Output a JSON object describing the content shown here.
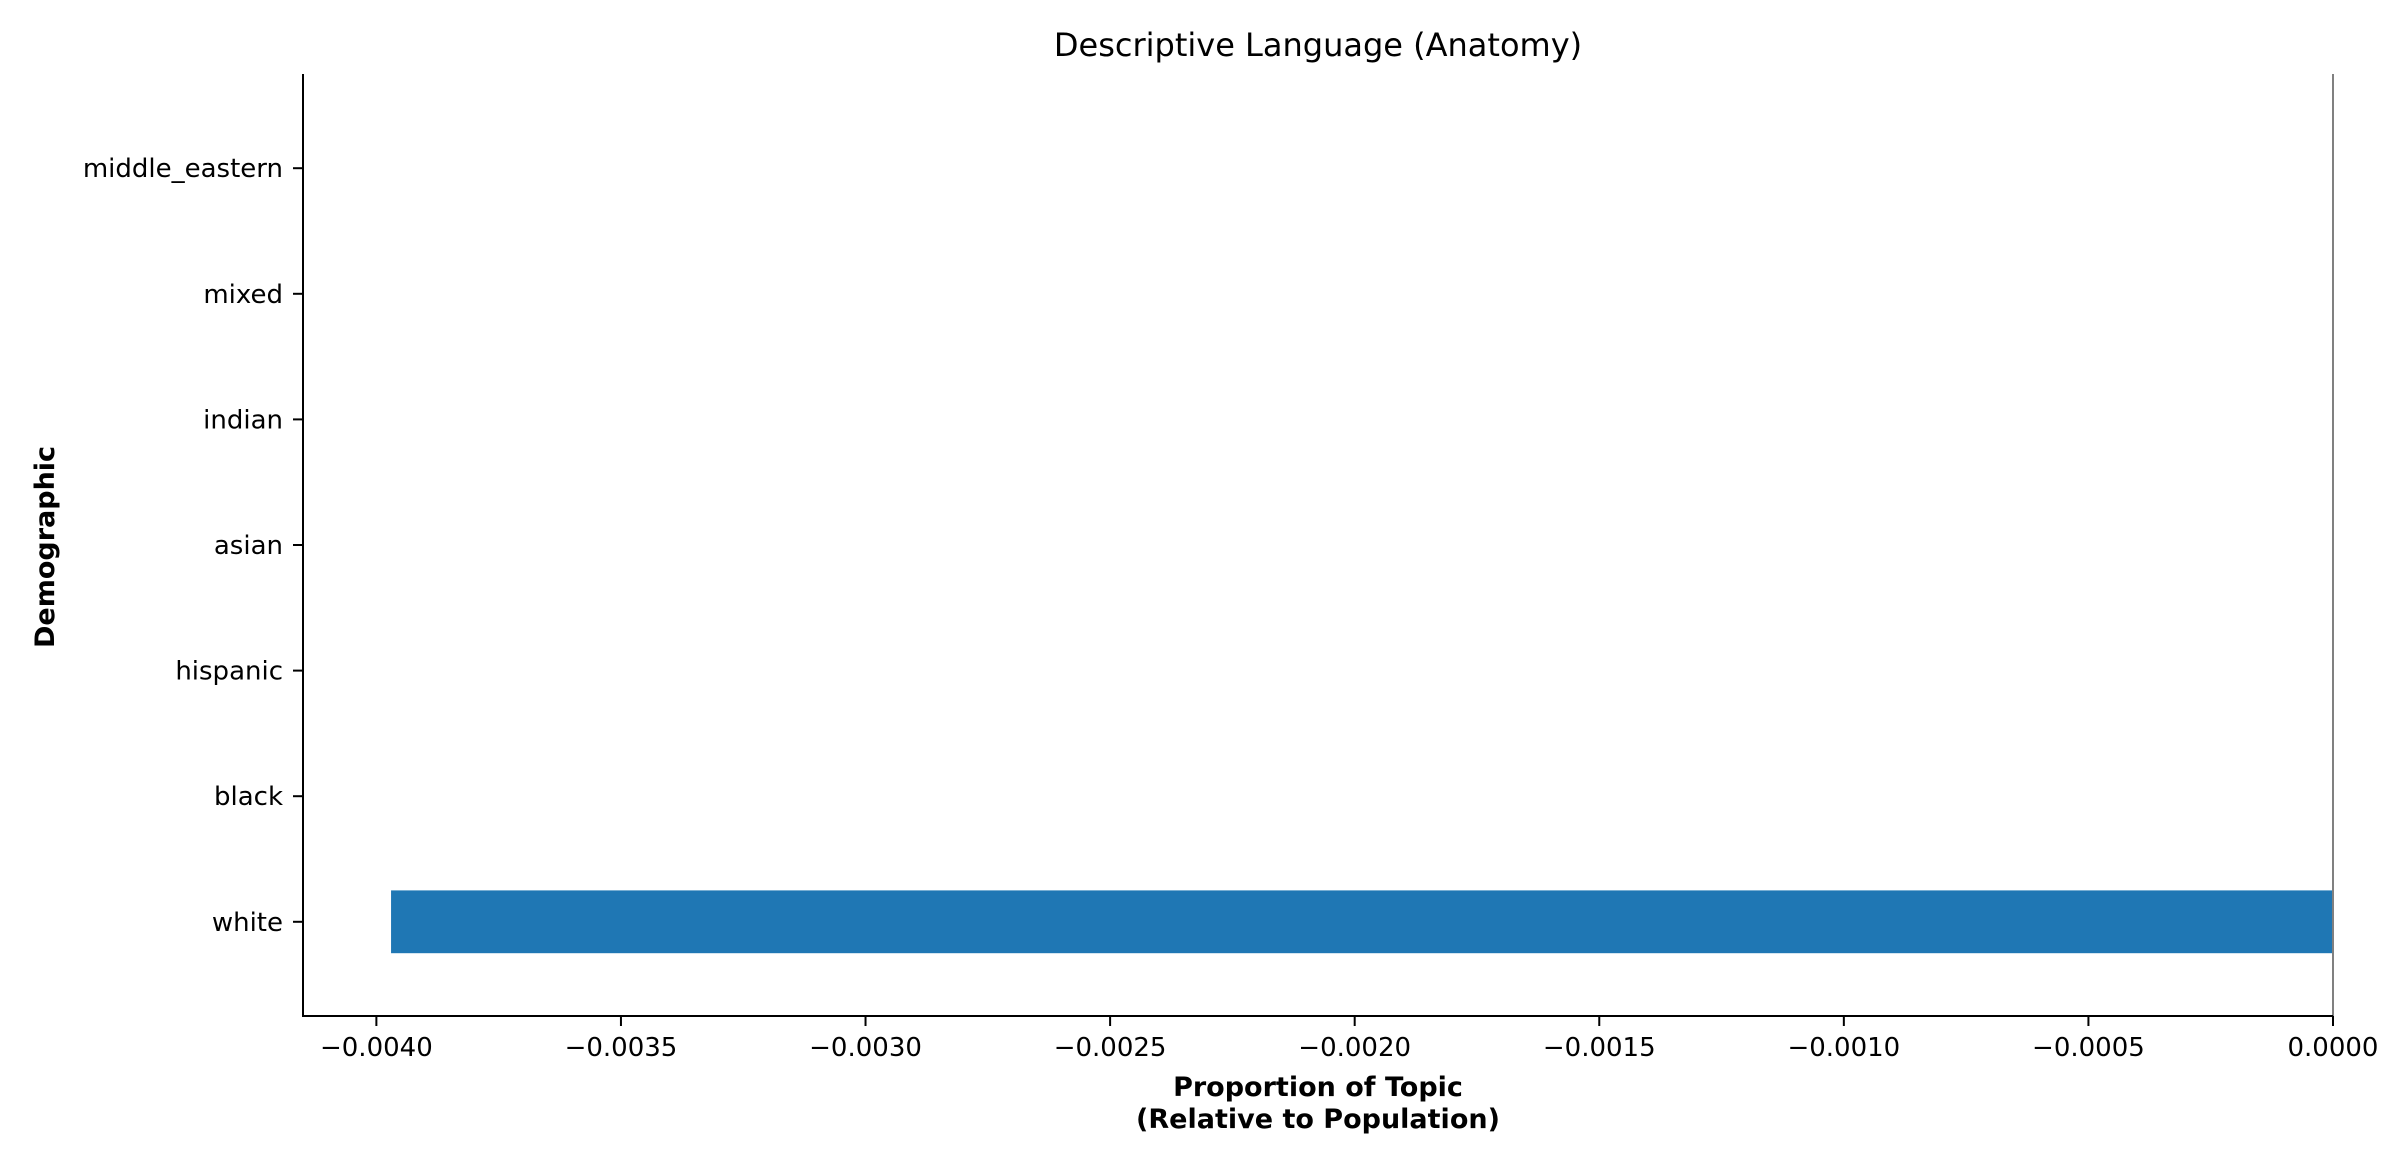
{
  "chart_data": {
    "type": "bar",
    "orientation": "horizontal",
    "title": "Descriptive Language (Anatomy)",
    "xlabel_lines": [
      "Proportion of Topic",
      "(Relative to Population)"
    ],
    "ylabel": "Demographic",
    "categories": [
      "white",
      "black",
      "hispanic",
      "asian",
      "indian",
      "mixed",
      "middle_eastern"
    ],
    "values": [
      -0.00397,
      0,
      0,
      0,
      0,
      0,
      0
    ],
    "xlim": [
      -0.00415,
      0.0
    ],
    "xticks": [
      -0.004,
      -0.0035,
      -0.003,
      -0.0025,
      -0.002,
      -0.0015,
      -0.001,
      -0.0005,
      0.0
    ],
    "xtick_labels": [
      "−0.0040",
      "−0.0035",
      "−0.0030",
      "−0.0025",
      "−0.0020",
      "−0.0015",
      "−0.0010",
      "−0.0005",
      "0.0000"
    ],
    "bar_color": "#1f77b4",
    "zero_line_color": "#808080",
    "grid": false,
    "legend": "none"
  }
}
